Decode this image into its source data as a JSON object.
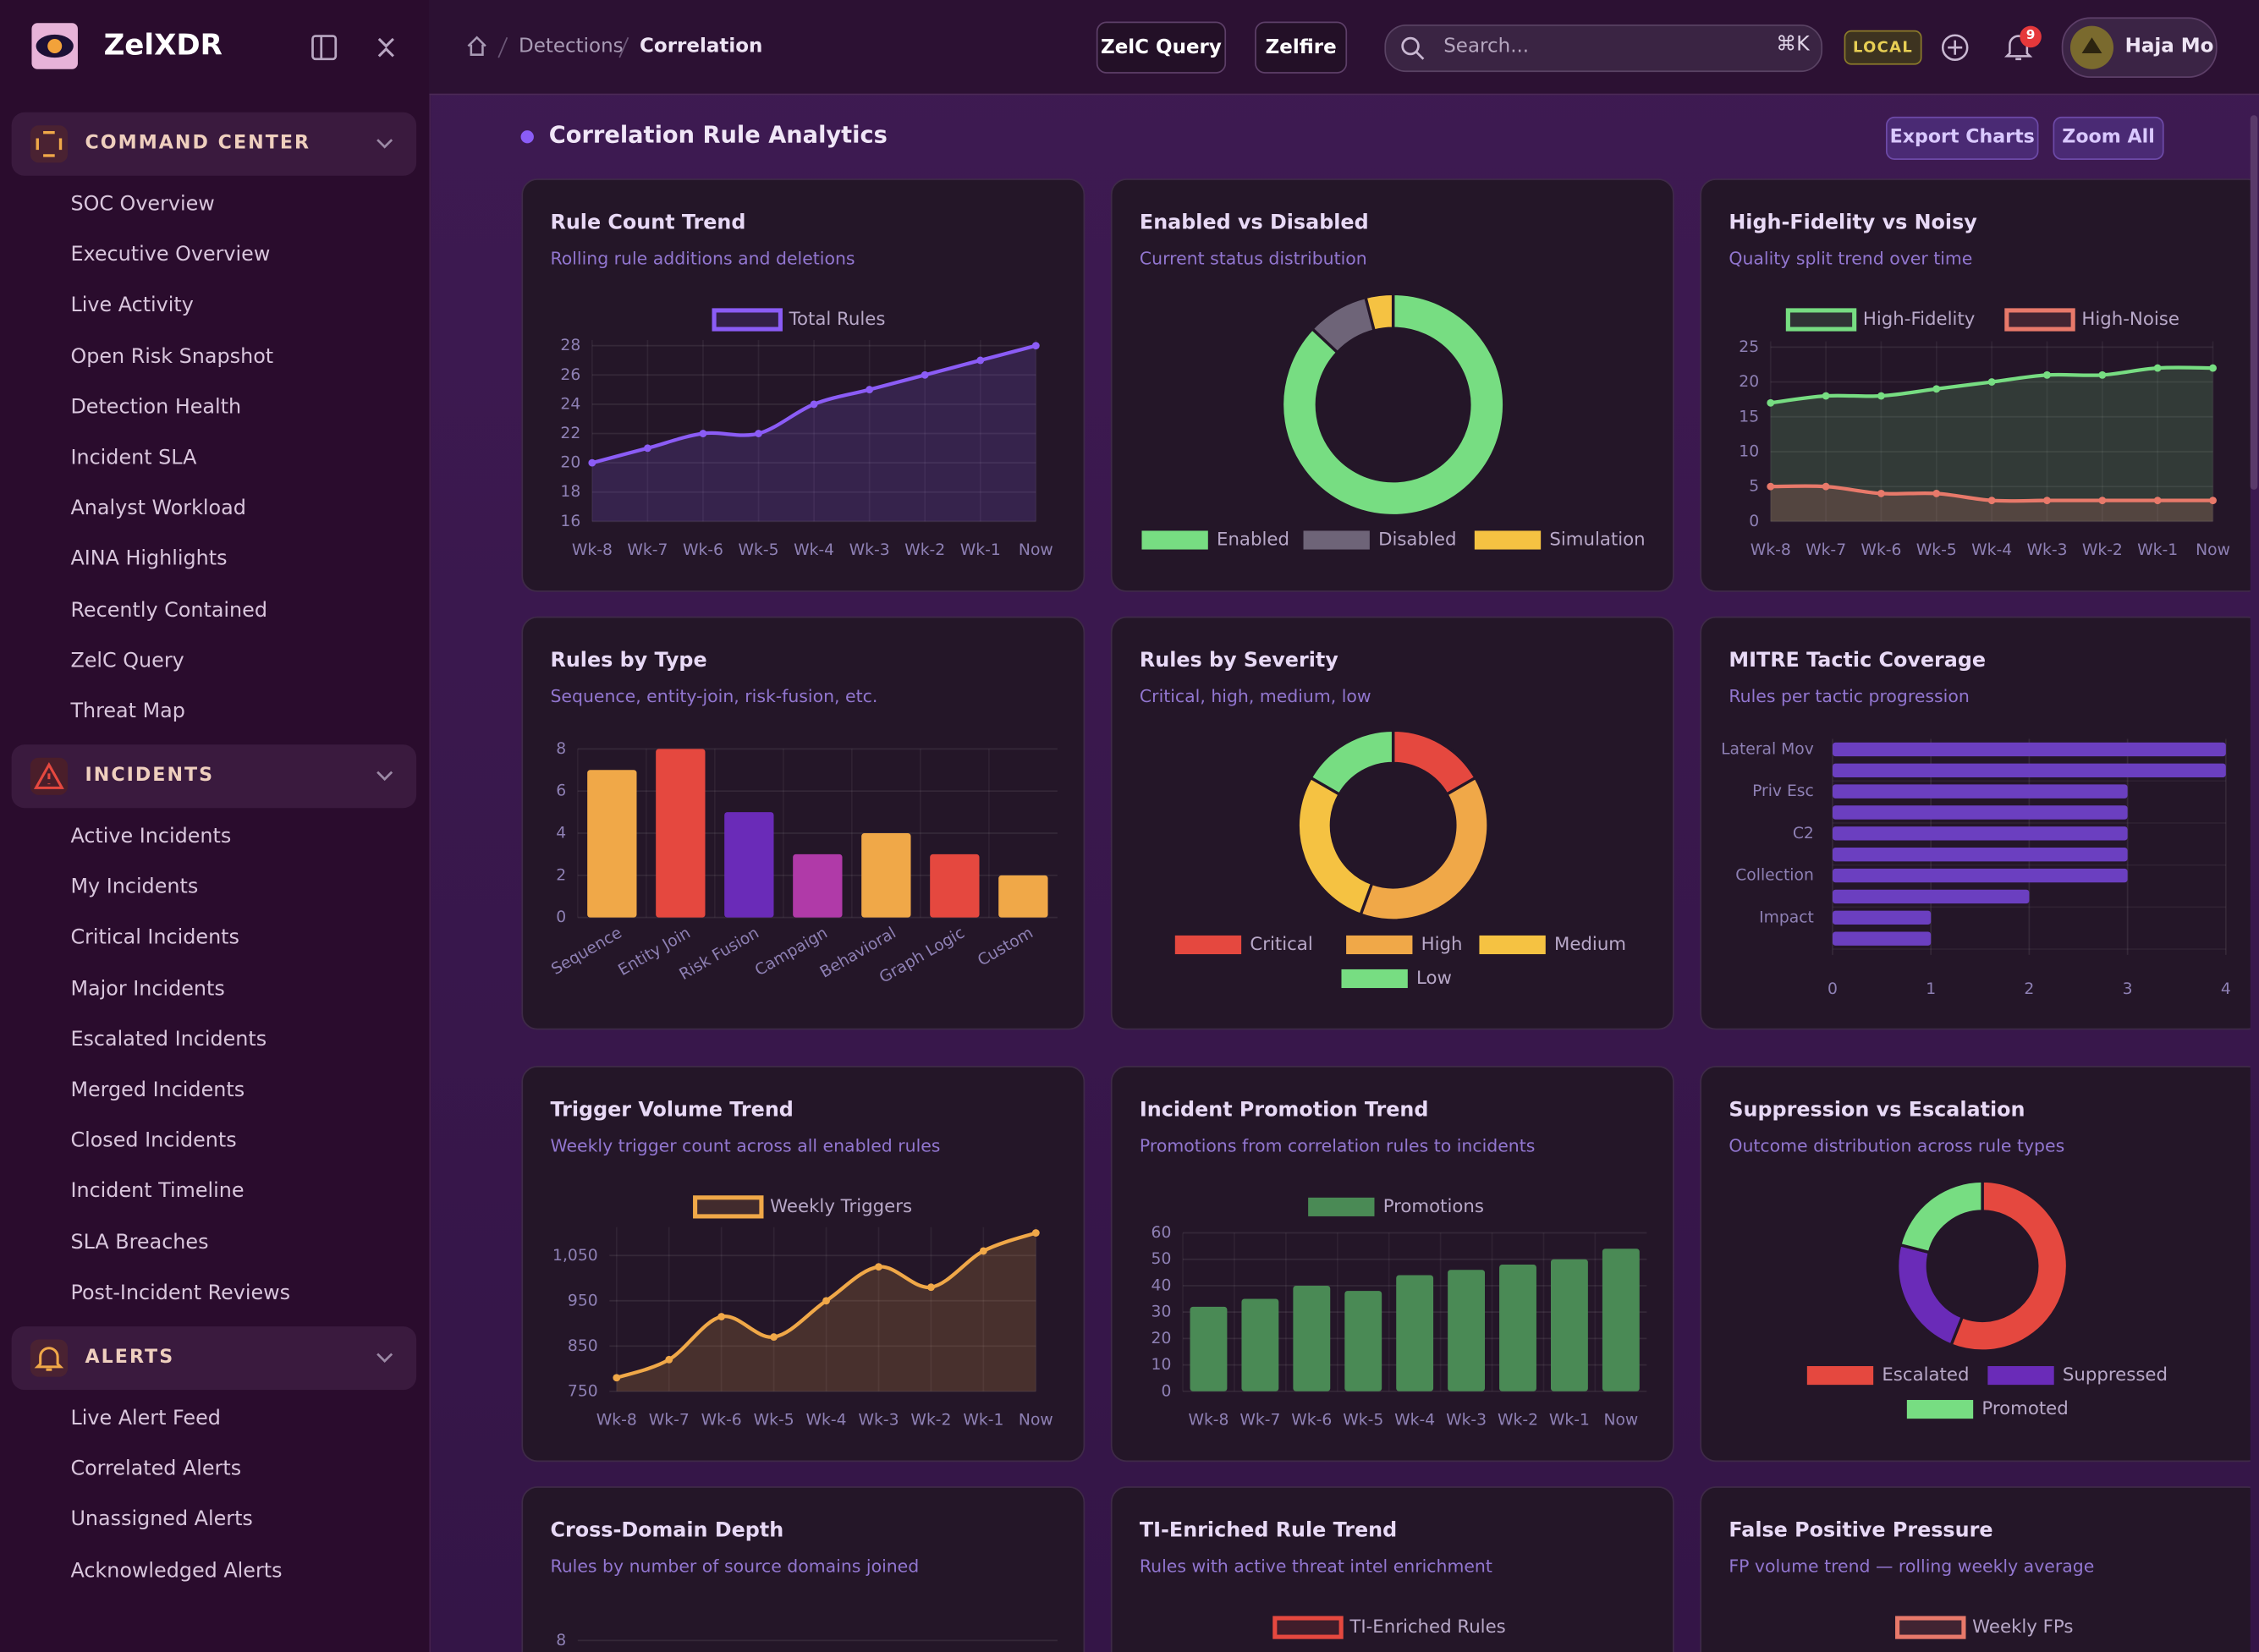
{
  "brand": {
    "name": "ZelXDR"
  },
  "sidebar": {
    "sections": [
      {
        "title": "COMMAND CENTER",
        "items": [
          "SOC Overview",
          "Executive Overview",
          "Live Activity",
          "Open Risk Snapshot",
          "Detection Health",
          "Incident SLA",
          "Analyst Workload",
          "AINA Highlights",
          "Recently Contained",
          "ZelC Query",
          "Threat Map"
        ]
      },
      {
        "title": "INCIDENTS",
        "items": [
          "Active Incidents",
          "My Incidents",
          "Critical Incidents",
          "Major Incidents",
          "Escalated Incidents",
          "Merged Incidents",
          "Closed Incidents",
          "Incident Timeline",
          "SLA Breaches",
          "Post-Incident Reviews"
        ]
      },
      {
        "title": "ALERTS",
        "items": [
          "Live Alert Feed",
          "Correlated Alerts",
          "Unassigned Alerts",
          "Acknowledged Alerts"
        ]
      }
    ]
  },
  "topbar": {
    "breadcrumb": [
      "Detections",
      "Correlation"
    ],
    "buttons": [
      "ZelC Query",
      "Zelfire"
    ],
    "search": {
      "placeholder": "Search...",
      "shortcut": "⌘K"
    },
    "env": "LOCAL",
    "notifications": 9,
    "user": "Haja Mo"
  },
  "section": {
    "title": "Correlation Rule Analytics",
    "actions": [
      "Export Charts",
      "Zoom All"
    ]
  },
  "chart_data": [
    {
      "type": "line",
      "title": "Rule Count Trend",
      "subtitle": "Rolling rule additions and deletions",
      "categories": [
        "Wk-8",
        "Wk-7",
        "Wk-6",
        "Wk-5",
        "Wk-4",
        "Wk-3",
        "Wk-2",
        "Wk-1",
        "Now"
      ],
      "series": [
        {
          "name": "Total Rules",
          "color": "#8b5cf6",
          "values": [
            20,
            21,
            22,
            22,
            24,
            25,
            26,
            27,
            28
          ]
        }
      ],
      "ylim": [
        16,
        28
      ],
      "yticks": [
        16,
        18,
        20,
        22,
        24,
        26,
        28
      ],
      "grid": true
    },
    {
      "type": "doughnut",
      "title": "Enabled vs Disabled",
      "subtitle": "Current status distribution",
      "categories": [
        "Enabled",
        "Disabled",
        "Simulation"
      ],
      "values": [
        87,
        9,
        4
      ],
      "colors": [
        "#77dd82",
        "#6e6478",
        "#f5c242"
      ]
    },
    {
      "type": "line",
      "title": "High-Fidelity vs Noisy",
      "subtitle": "Quality split trend over time",
      "categories": [
        "Wk-8",
        "Wk-7",
        "Wk-6",
        "Wk-5",
        "Wk-4",
        "Wk-3",
        "Wk-2",
        "Wk-1",
        "Now"
      ],
      "series": [
        {
          "name": "High-Fidelity",
          "color": "#77dd82",
          "values": [
            17,
            18,
            18,
            19,
            20,
            21,
            21,
            22,
            22
          ]
        },
        {
          "name": "High-Noise",
          "color": "#e8796a",
          "values": [
            5,
            5,
            4,
            4,
            3,
            3,
            3,
            3,
            3
          ]
        }
      ],
      "ylim": [
        0,
        25
      ],
      "yticks": [
        0,
        5,
        10,
        15,
        20,
        25
      ],
      "grid": true
    },
    {
      "type": "bar",
      "title": "Rules by Type",
      "subtitle": "Sequence, entity-join, risk-fusion, etc.",
      "categories": [
        "Sequence",
        "Entity Join",
        "Risk Fusion",
        "Campaign",
        "Behavioral",
        "Graph Logic",
        "Custom"
      ],
      "values": [
        7,
        8,
        5,
        3,
        4,
        3,
        2
      ],
      "colors": [
        "#f0a848",
        "#e5483f",
        "#6a2bb8",
        "#b03aa8",
        "#f0a848",
        "#e5483f",
        "#f0a848"
      ],
      "ylim": [
        0,
        8
      ],
      "yticks": [
        0,
        2,
        4,
        6,
        8
      ],
      "grid": true
    },
    {
      "type": "doughnut",
      "title": "Rules by Severity",
      "subtitle": "Critical, high, medium, low",
      "categories": [
        "Critical",
        "High",
        "Medium",
        "Low"
      ],
      "values": [
        6,
        14,
        10,
        6
      ],
      "colors": [
        "#e5483f",
        "#f0a848",
        "#f5c242",
        "#77dd82"
      ]
    },
    {
      "type": "bar",
      "orientation": "horizontal",
      "title": "MITRE Tactic Coverage",
      "subtitle": "Rules per tactic progression",
      "categories": [
        "Lateral Mov",
        null,
        "Priv Esc",
        null,
        "C2",
        null,
        "Collection",
        null,
        "Impact",
        null
      ],
      "values": [
        4,
        4,
        3,
        3,
        3,
        3,
        3,
        2,
        1,
        1
      ],
      "color": "#6b3fc0",
      "xlim": [
        0,
        4
      ],
      "xticks": [
        0,
        1,
        2,
        3,
        4
      ],
      "grid": true
    },
    {
      "type": "line",
      "title": "Trigger Volume Trend",
      "subtitle": "Weekly trigger count across all enabled rules",
      "categories": [
        "Wk-8",
        "Wk-7",
        "Wk-6",
        "Wk-5",
        "Wk-4",
        "Wk-3",
        "Wk-2",
        "Wk-1",
        "Now"
      ],
      "series": [
        {
          "name": "Weekly Triggers",
          "color": "#f0a848",
          "values": [
            780,
            820,
            915,
            870,
            950,
            1025,
            980,
            1060,
            1100
          ]
        }
      ],
      "ylim": [
        750,
        1100
      ],
      "yticks": [
        750,
        850,
        950,
        {
          "value": 1050,
          "label": "1,050"
        }
      ],
      "grid": true
    },
    {
      "type": "bar",
      "title": "Incident Promotion Trend",
      "subtitle": "Promotions from correlation rules to incidents",
      "categories": [
        "Wk-8",
        "Wk-7",
        "Wk-6",
        "Wk-5",
        "Wk-4",
        "Wk-3",
        "Wk-2",
        "Wk-1",
        "Now"
      ],
      "series": [
        {
          "name": "Promotions",
          "color": "#4a8a55",
          "values": [
            32,
            35,
            40,
            38,
            44,
            46,
            48,
            50,
            54
          ]
        }
      ],
      "ylim": [
        0,
        60
      ],
      "yticks": [
        0,
        10,
        20,
        30,
        40,
        50,
        60
      ],
      "grid": true
    },
    {
      "type": "doughnut",
      "title": "Suppression vs Escalation",
      "subtitle": "Outcome distribution across rule types",
      "categories": [
        "Escalated",
        "Suppressed",
        "Promoted"
      ],
      "values": [
        56,
        23,
        21
      ],
      "colors": [
        "#e5483f",
        "#6a2bb8",
        "#77dd82"
      ]
    },
    {
      "type": "bar",
      "title": "Cross-Domain Depth",
      "subtitle": "Rules by number of source domains joined",
      "yticks": [
        8
      ],
      "grid": true
    },
    {
      "type": "line",
      "title": "TI-Enriched Rule Trend",
      "subtitle": "Rules with active threat intel enrichment",
      "series": [
        {
          "name": "TI-Enriched Rules",
          "color": "#e5483f"
        }
      ]
    },
    {
      "type": "line",
      "title": "False Positive Pressure",
      "subtitle": "FP volume trend — rolling weekly average",
      "series": [
        {
          "name": "Weekly FPs",
          "color": "#e8796a"
        }
      ]
    }
  ]
}
